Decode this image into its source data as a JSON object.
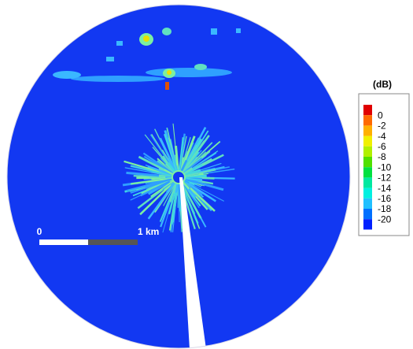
{
  "colorbar": {
    "title": "(dB)",
    "ticks": [
      0,
      -2,
      -4,
      -6,
      -8,
      -10,
      -12,
      -14,
      -16,
      -18,
      -20
    ]
  },
  "scale_bar": {
    "start": "0",
    "end": "1 km"
  }
}
